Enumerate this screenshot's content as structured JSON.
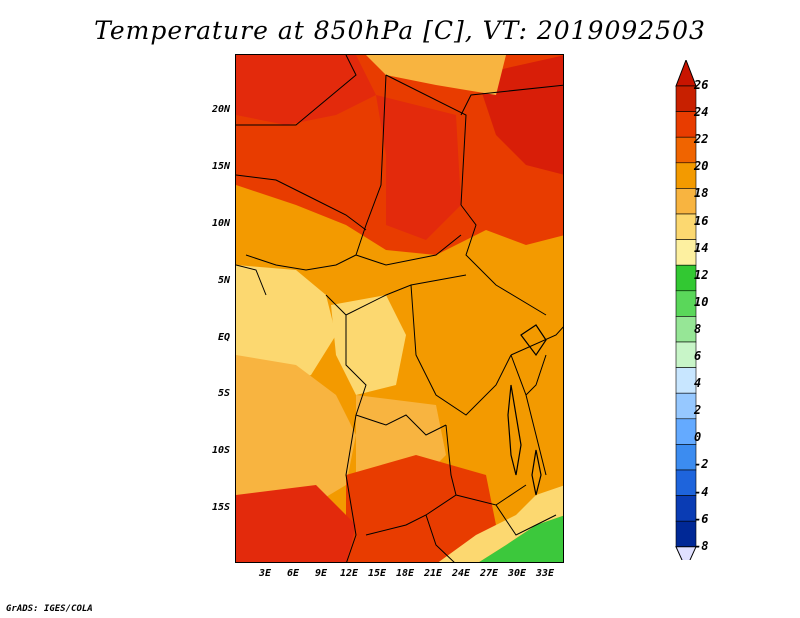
{
  "title": "Temperature at 850hPa [C], VT: 2019092503",
  "credit": "GrADS: IGES/COLA",
  "lat_labels": [
    "20N",
    "15N",
    "10N",
    "5N",
    "EQ",
    "5S",
    "10S",
    "15S"
  ],
  "lon_labels": [
    "3E",
    "6E",
    "9E",
    "12E",
    "15E",
    "18E",
    "21E",
    "24E",
    "27E",
    "30E",
    "33E"
  ],
  "colorbar": {
    "labels": [
      "26",
      "24",
      "22",
      "20",
      "18",
      "16",
      "14",
      "12",
      "10",
      "8",
      "6",
      "4",
      "2",
      "0",
      "-2",
      "-4",
      "-6",
      "-8"
    ],
    "colors": [
      "#c82000",
      "#e83c00",
      "#f06400",
      "#f39a00",
      "#f8b440",
      "#fcd870",
      "#fdf0a0",
      "#32c832",
      "#5ad75a",
      "#96e696",
      "#c8f5c8",
      "#c8e6ff",
      "#96c8ff",
      "#64aaff",
      "#3c8cf0",
      "#1e64dc",
      "#0a3cb4",
      "#002896",
      "#000a64"
    ],
    "over_color": "#c81400",
    "under_color": "#e0e0ff"
  },
  "map_colors": {
    "hot": "#e32a0c",
    "warm": "#f06020",
    "mid": "#f39a00",
    "mild": "#f8b440",
    "cool": "#fcd870",
    "green": "#3cc83c"
  }
}
